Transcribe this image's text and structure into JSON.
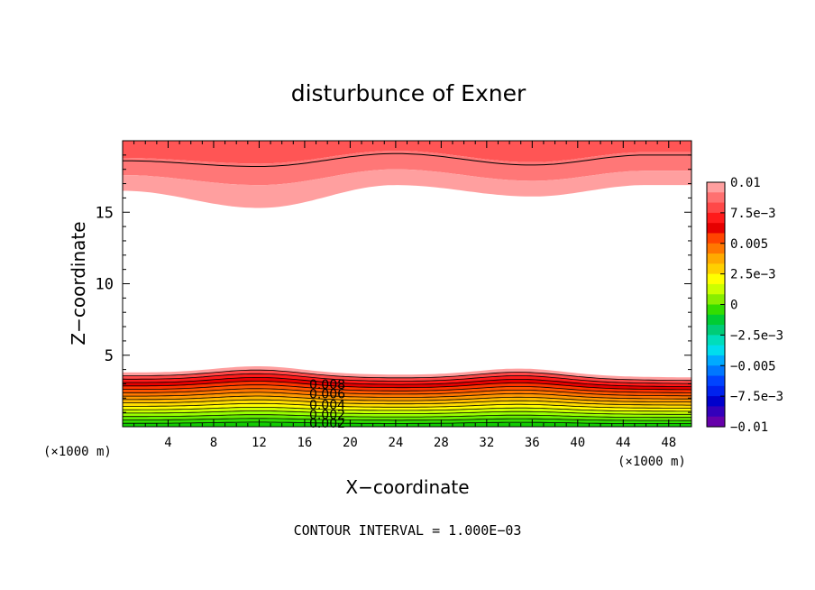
{
  "chart_data": {
    "type": "filled-contour",
    "title": "disturbunce of Exner",
    "xlabel": "X−coordinate",
    "ylabel": "Z−coordinate",
    "x_unit_left": "(×1000 m)",
    "x_unit_right": "(×1000 m)",
    "xlim": [
      0,
      50
    ],
    "ylim": [
      0,
      20
    ],
    "x_ticks": [
      4,
      8,
      12,
      16,
      20,
      24,
      28,
      32,
      36,
      40,
      44,
      48
    ],
    "x_tick_labels": [
      "4",
      "8",
      "12",
      "16",
      "20",
      "24",
      "28",
      "32",
      "36",
      "40",
      "44",
      "48"
    ],
    "y_ticks": [
      5,
      10,
      15
    ],
    "y_tick_labels": [
      "5",
      "10",
      "15"
    ],
    "footnote": "CONTOUR INTERVAL = 1.000E−03",
    "colorbar": {
      "min": -0.01,
      "max": 0.01,
      "tick_values": [
        0.01,
        0.0075,
        0.005,
        0.0025,
        0,
        -0.0025,
        -0.005,
        -0.0075,
        -0.01
      ],
      "tick_labels": [
        "0.01",
        "7.5e−3",
        "0.005",
        "2.5e−3",
        "0",
        "−2.5e−3",
        "−0.005",
        "−7.5e−3",
        "−0.01"
      ],
      "colors": [
        "#ff9f9f",
        "#ff7070",
        "#ff4848",
        "#ff1a1a",
        "#e60000",
        "#ff4400",
        "#ff7700",
        "#ffaa00",
        "#ffd000",
        "#ffff00",
        "#ccff00",
        "#88ee00",
        "#33dd00",
        "#00cc33",
        "#00cc77",
        "#00ddbb",
        "#00ddee",
        "#00aaff",
        "#0077ff",
        "#0044ff",
        "#0022ee",
        "#0000cc",
        "#3300bb",
        "#6600aa"
      ]
    },
    "contour_labels": [
      "0.008",
      "0.006",
      "0.004",
      "0.002",
      "0.002"
    ],
    "upper_region": {
      "z_top": 20,
      "bands": [
        {
          "value": 0.0095,
          "color": "#ff5555",
          "z_edge": [
            18.8,
            18.4,
            19.3,
            18.5,
            19.2
          ]
        },
        {
          "value": 0.009,
          "color": "#ff7777",
          "z_edge": [
            17.6,
            16.9,
            18.0,
            17.2,
            17.9
          ]
        },
        {
          "value": 0.0085,
          "color": "#ff9f9f",
          "z_edge": [
            16.5,
            15.3,
            16.9,
            16.1,
            16.9
          ]
        }
      ],
      "crest_x": [
        0,
        12,
        24,
        36,
        46
      ]
    },
    "lower_region": {
      "z_bottom": 0,
      "layer_values": [
        0.0085,
        0.008,
        0.0075,
        0.007,
        0.0065,
        0.006,
        0.0055,
        0.005,
        0.0045,
        0.004,
        0.0035,
        0.003,
        0.0025,
        0.002,
        0.0015,
        0.001
      ],
      "layer_colors": [
        "#ff9f9f",
        "#ff4848",
        "#ff1a1a",
        "#e60000",
        "#ff3300",
        "#ff5500",
        "#ff7700",
        "#ff9900",
        "#ffbb00",
        "#ffdd00",
        "#ffff00",
        "#ccff00",
        "#99ff00",
        "#66ee00",
        "#33dd00",
        "#11cc00"
      ],
      "z_top_at_x0": 3.8,
      "bump_x": [
        12,
        35
      ],
      "bump_height": 0.5
    }
  }
}
